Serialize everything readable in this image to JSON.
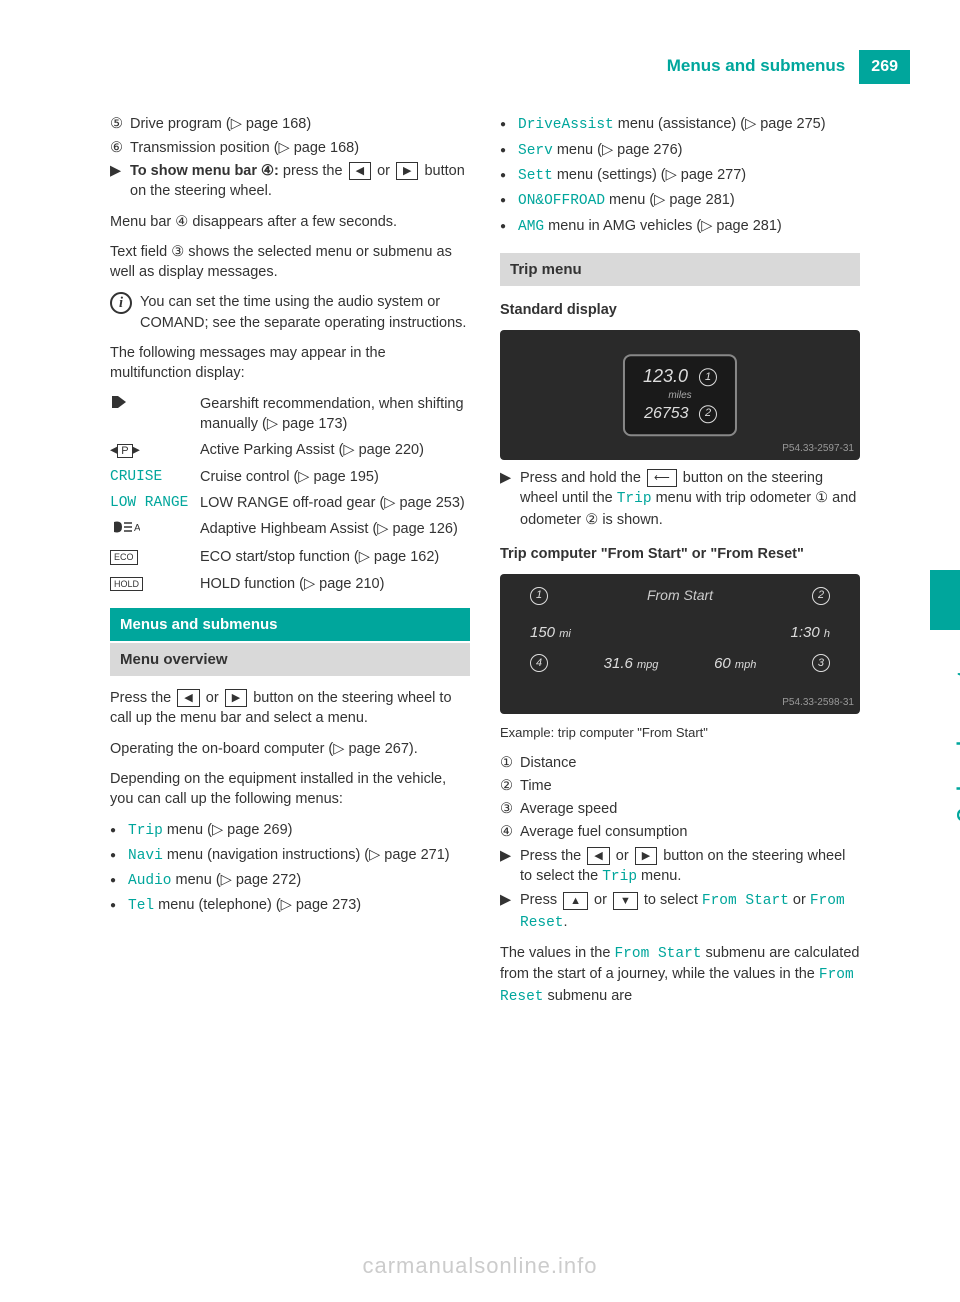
{
  "header": {
    "title": "Menus and submenus",
    "page": "269"
  },
  "sidetab": "On-board computer and displays",
  "left": {
    "item5": {
      "num": "⑤",
      "text": "Drive program (▷ page 168)"
    },
    "item6": {
      "num": "⑥",
      "text": "Transmission position (▷ page 168)"
    },
    "showMenu": {
      "lead": "To show menu bar ④:",
      "tail1": " press the ",
      "tail2": " or ",
      "tail3": " button on the steering wheel."
    },
    "menuBar": "Menu bar ④ disappears after a few seconds.",
    "textField": "Text field ③ shows the selected menu or submenu as well as display messages.",
    "info": "You can set the time using the audio system or COMAND; see the separate operating instructions.",
    "followPara": "The following messages may appear in the multifunction display:",
    "table": [
      {
        "c1_icon": "gear",
        "c2": "Gearshift recommendation, when shifting manually (▷ page 173)"
      },
      {
        "c1_icon": "park",
        "c2": "Active Parking Assist (▷ page 220)"
      },
      {
        "c1_cyan": "CRUISE",
        "c2": "Cruise control (▷ page 195)"
      },
      {
        "c1_cyan": "LOW RANGE",
        "c2": "LOW RANGE off-road gear (▷ page 253)"
      },
      {
        "c1_icon": "beam",
        "c2": "Adaptive Highbeam Assist (▷ page 126)"
      },
      {
        "c1_box": "ECO",
        "c2": "ECO start/stop function (▷ page 162)"
      },
      {
        "c1_box": "HOLD",
        "c2": "HOLD function (▷ page 210)"
      }
    ],
    "sectionBar": "Menus and submenus",
    "subBar": "Menu overview",
    "press": {
      "p1": "Press the ",
      "p2": " or ",
      "p3": " button on the steering wheel to call up the menu bar and select a menu."
    },
    "operating": "Operating the on-board computer (▷ page 267).",
    "depending": "Depending on the equipment installed in the vehicle, you can call up the following menus:",
    "menus1": [
      {
        "cyan": "Trip",
        "tail": " menu (▷ page 269)"
      },
      {
        "cyan": "Navi",
        "tail": " menu (navigation instructions) (▷ page 271)"
      },
      {
        "cyan": "Audio",
        "tail": " menu (▷ page 272)"
      },
      {
        "cyan": "Tel",
        "tail": " menu (telephone) (▷ page 273)"
      }
    ]
  },
  "right": {
    "menus2": [
      {
        "cyan": "DriveAssist",
        "tail": " menu (assistance) (▷ page 275)"
      },
      {
        "cyan": "Serv",
        "tail": " menu (▷ page 276)"
      },
      {
        "cyan": "Sett",
        "tail": " menu (settings) (▷ page 277)"
      },
      {
        "cyan": "ON&OFFROAD",
        "tail": " menu (▷ page 281)"
      },
      {
        "cyan": "AMG",
        "tail": " menu in AMG vehicles (▷ page 281)"
      }
    ],
    "tripBar": "Trip menu",
    "stdHead": "Standard display",
    "img1": {
      "line1": "123.0",
      "unit1": "miles",
      "line2": "26753",
      "lab1": "1",
      "lab2": "2",
      "caption": "P54.33-2597-31"
    },
    "stdStep": {
      "p1": "Press and hold the ",
      "p2": " button on the steering wheel until the ",
      "cyan1": "Trip",
      "p3": " menu with trip odometer ① and odometer ② is shown."
    },
    "tripCompHead": "Trip computer \"From Start\" or \"From Reset\"",
    "img2": {
      "top": "From Start",
      "dist": "150",
      "distUnit": "mi",
      "time": "1:30",
      "timeUnit": "h",
      "mpg": "31.6",
      "mpgUnit": "mpg",
      "mph": "60",
      "mphUnit": "mph",
      "caption": "P54.33-2598-31"
    },
    "example": "Example: trip computer \"From Start\"",
    "defs": [
      {
        "n": "①",
        "t": "Distance"
      },
      {
        "n": "②",
        "t": "Time"
      },
      {
        "n": "③",
        "t": "Average speed"
      },
      {
        "n": "④",
        "t": "Average fuel consumption"
      }
    ],
    "step1": {
      "p1": "Press the ",
      "p2": " or ",
      "p3": " button on the steering wheel to select the ",
      "cyan": "Trip",
      "p4": " menu."
    },
    "step2": {
      "p1": "Press ",
      "p2": " or ",
      "p3": " to select ",
      "cyan1": "From Start",
      "p4": " or ",
      "cyan2": "From Reset",
      "p5": "."
    },
    "valuesPara": {
      "p1": "The values in the ",
      "c1": "From Start",
      "p2": " submenu are calculated from the start of a journey, while the values in the ",
      "c2": "From Reset",
      "p3": " submenu are"
    }
  },
  "footer": "carmanualsonline.info",
  "colors": {
    "accent": "#00a69c"
  }
}
